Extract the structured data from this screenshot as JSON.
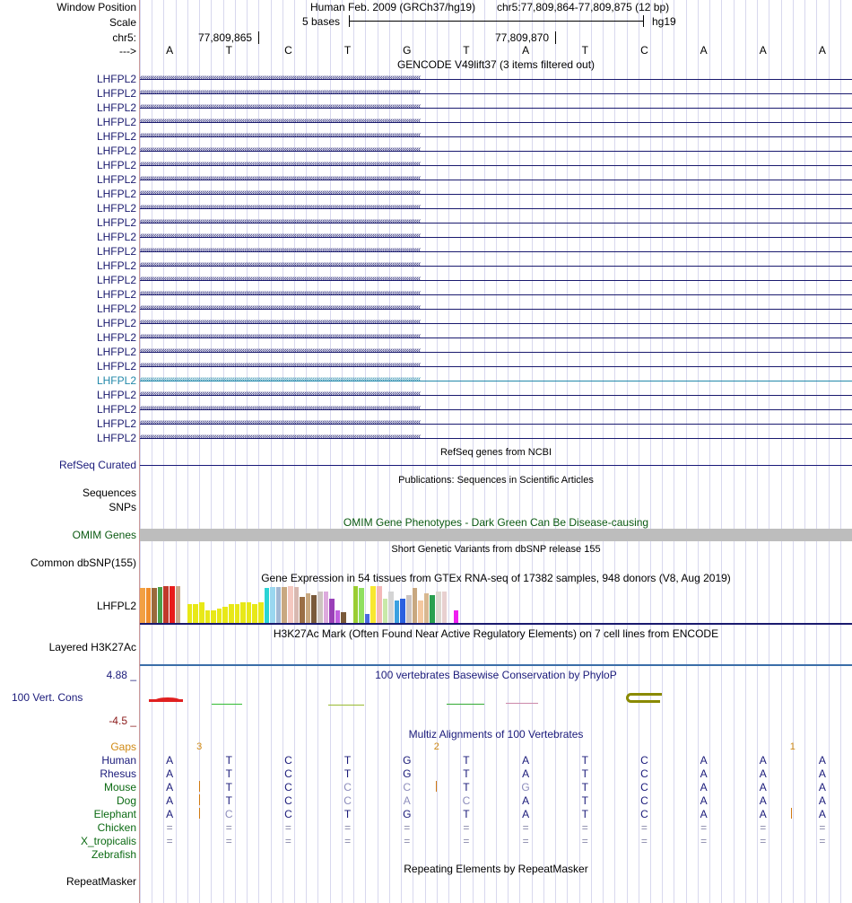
{
  "header": {
    "window_position_label": "Window Position",
    "assembly": "Human Feb. 2009 (GRCh37/hg19)",
    "position": "chr5:77,809,864-77,809,875 (12 bp)",
    "scale_label": "Scale",
    "scale_bases": "5 bases",
    "scale_db": "hg19",
    "chrom_label": "chr5:",
    "coord_1": "77,809,865",
    "coord_2": "77,809,870",
    "strand_label": "--->"
  },
  "sequence": [
    "A",
    "T",
    "C",
    "T",
    "G",
    "T",
    "A",
    "T",
    "C",
    "A",
    "A",
    "A"
  ],
  "gencode": {
    "title": "GENCODE V49lift37 (3 items filtered out)",
    "gene_label": "LHFPL2",
    "row_count": 26,
    "highlight_row_index": 21,
    "color": "#1a1a6e",
    "highlight_color": "#2288aa"
  },
  "refseq": {
    "title": "RefSeq genes from NCBI",
    "label": "RefSeq Curated"
  },
  "publications": {
    "title": "Publications: Sequences in Scientific Articles",
    "label_1": "Sequences",
    "label_2": "SNPs"
  },
  "omim": {
    "title": "OMIM Gene Phenotypes - Dark Green Can Be Disease-causing",
    "label": "OMIM Genes"
  },
  "dbsnp": {
    "title": "Short Genetic Variants from dbSNP release 155",
    "label": "Common dbSNP(155)"
  },
  "gtex": {
    "title": "Gene Expression in 54 tissues from GTEx RNA-seq of 17382 samples, 948 donors (V8, Aug 2019)",
    "label": "LHFPL2",
    "tissues": [
      {
        "color": "#f2a043",
        "level": 0.95
      },
      {
        "color": "#f08e2c",
        "level": 0.95
      },
      {
        "color": "#9a6a3c",
        "level": 0.95
      },
      {
        "color": "#4aa04a",
        "level": 0.97
      },
      {
        "color": "#c0392b",
        "level": 1.0
      },
      {
        "color": "#e81c1c",
        "level": 1.0
      },
      {
        "color": "#c7a88a",
        "level": 1.0
      },
      {
        "color": "#ffffff",
        "level": 0.0
      },
      {
        "color": "#e8e818",
        "level": 0.5
      },
      {
        "color": "#e8e818",
        "level": 0.5
      },
      {
        "color": "#e8e818",
        "level": 0.55
      },
      {
        "color": "#e8e818",
        "level": 0.35
      },
      {
        "color": "#e8e818",
        "level": 0.35
      },
      {
        "color": "#e8e818",
        "level": 0.4
      },
      {
        "color": "#e8e818",
        "level": 0.45
      },
      {
        "color": "#e8e818",
        "level": 0.5
      },
      {
        "color": "#e8e818",
        "level": 0.5
      },
      {
        "color": "#e8e818",
        "level": 0.55
      },
      {
        "color": "#e8e818",
        "level": 0.55
      },
      {
        "color": "#e8e818",
        "level": 0.5
      },
      {
        "color": "#e8e818",
        "level": 0.55
      },
      {
        "color": "#2ad4d4",
        "level": 0.95
      },
      {
        "color": "#9ad7f0",
        "level": 0.97
      },
      {
        "color": "#a1b8d4",
        "level": 0.97
      },
      {
        "color": "#c8a880",
        "level": 0.97
      },
      {
        "color": "#f4c8c0",
        "level": 1.0
      },
      {
        "color": "#d8b8b0",
        "level": 0.97
      },
      {
        "color": "#9a6e46",
        "level": 0.7
      },
      {
        "color": "#c8a880",
        "level": 0.8
      },
      {
        "color": "#7a5a3a",
        "level": 0.75
      },
      {
        "color": "#ccc4c0",
        "level": 0.85
      },
      {
        "color": "#ddaadd",
        "level": 0.85
      },
      {
        "color": "#9a40b8",
        "level": 0.65
      },
      {
        "color": "#c060e0",
        "level": 0.35
      },
      {
        "color": "#7a5a3a",
        "level": 0.3
      },
      {
        "color": "#ffffff",
        "level": 0.0
      },
      {
        "color": "#9acd32",
        "level": 1.0
      },
      {
        "color": "#90e060",
        "level": 0.95
      },
      {
        "color": "#4a6ae0",
        "level": 0.25
      },
      {
        "color": "#f8e830",
        "level": 1.0
      },
      {
        "color": "#f4b8b8",
        "level": 1.0
      },
      {
        "color": "#c8e8a8",
        "level": 0.65
      },
      {
        "color": "#d4d4d4",
        "level": 0.85
      },
      {
        "color": "#3aa0e0",
        "level": 0.6
      },
      {
        "color": "#2a60e0",
        "level": 0.65
      },
      {
        "color": "#ccc4c0",
        "level": 0.75
      },
      {
        "color": "#c8a880",
        "level": 0.95
      },
      {
        "color": "#f4c8a0",
        "level": 0.6
      },
      {
        "color": "#d8b890",
        "level": 0.8
      },
      {
        "color": "#2aa050",
        "level": 0.75
      },
      {
        "color": "#ddd8d0",
        "level": 0.85
      },
      {
        "color": "#e8d0d0",
        "level": 0.85
      },
      {
        "color": "#ffffff",
        "level": 0.0
      },
      {
        "color": "#f020f0",
        "level": 0.35
      }
    ]
  },
  "h3k27ac": {
    "title": "H3K27Ac Mark (Often Found Near Active Regulatory Elements) on 7 cell lines from ENCODE",
    "label": "Layered H3K27Ac"
  },
  "phylop": {
    "title": "100 vertebrates Basewise Conservation by PhyloP",
    "label": "100 Vert. Cons",
    "max": "4.88 _",
    "min": "-4.5 _"
  },
  "multiz": {
    "title": "Multiz Alignments of 100 Vertebrates",
    "gaps_label": "Gaps",
    "gaps": [
      {
        "after_base": 0.5,
        "value": "3"
      },
      {
        "after_base": 4.5,
        "value": "2"
      },
      {
        "after_base": 10.5,
        "value": "1"
      }
    ],
    "species": [
      {
        "name": "Human",
        "bases": [
          "A",
          "T",
          "C",
          "T",
          "G",
          "T",
          "A",
          "T",
          "C",
          "A",
          "A",
          "A"
        ],
        "color": "#1a1a7a",
        "faded": []
      },
      {
        "name": "Rhesus",
        "bases": [
          "A",
          "T",
          "C",
          "T",
          "G",
          "T",
          "A",
          "T",
          "C",
          "A",
          "A",
          "A"
        ],
        "color": "#1a1a7a",
        "faded": []
      },
      {
        "name": "Mouse",
        "bases": [
          "A",
          "T",
          "C",
          "C",
          "C",
          "T",
          "G",
          "T",
          "C",
          "A",
          "A",
          "A"
        ],
        "color": "#1a1a7a",
        "faded": [
          3,
          4,
          6
        ]
      },
      {
        "name": "Dog",
        "bases": [
          "A",
          "T",
          "C",
          "C",
          "A",
          "C",
          "A",
          "T",
          "C",
          "A",
          "A",
          "A"
        ],
        "color": "#1a1a7a",
        "faded": [
          3,
          4,
          5
        ]
      },
      {
        "name": "Elephant",
        "bases": [
          "A",
          "C",
          "C",
          "T",
          "G",
          "T",
          "A",
          "T",
          "C",
          "A",
          "A",
          "A"
        ],
        "color": "#1a1a7a",
        "faded": [
          1
        ]
      },
      {
        "name": "Chicken",
        "bases": [
          "=",
          "=",
          "=",
          "=",
          "=",
          "=",
          "=",
          "=",
          "=",
          "=",
          "=",
          "="
        ],
        "color": "#8888aa",
        "faded": []
      },
      {
        "name": "X_tropicalis",
        "bases": [
          "=",
          "=",
          "=",
          "=",
          "=",
          "=",
          "=",
          "=",
          "=",
          "=",
          "=",
          "="
        ],
        "color": "#8888aa",
        "faded": []
      },
      {
        "name": "Zebrafish",
        "bases": [
          "",
          "",
          "",
          "",
          "",
          "",
          "",
          "",
          "",
          "",
          "",
          ""
        ],
        "color": "#8888aa",
        "faded": []
      }
    ]
  },
  "repeatmasker": {
    "title": "Repeating Elements by RepeatMasker",
    "label": "RepeatMasker"
  }
}
